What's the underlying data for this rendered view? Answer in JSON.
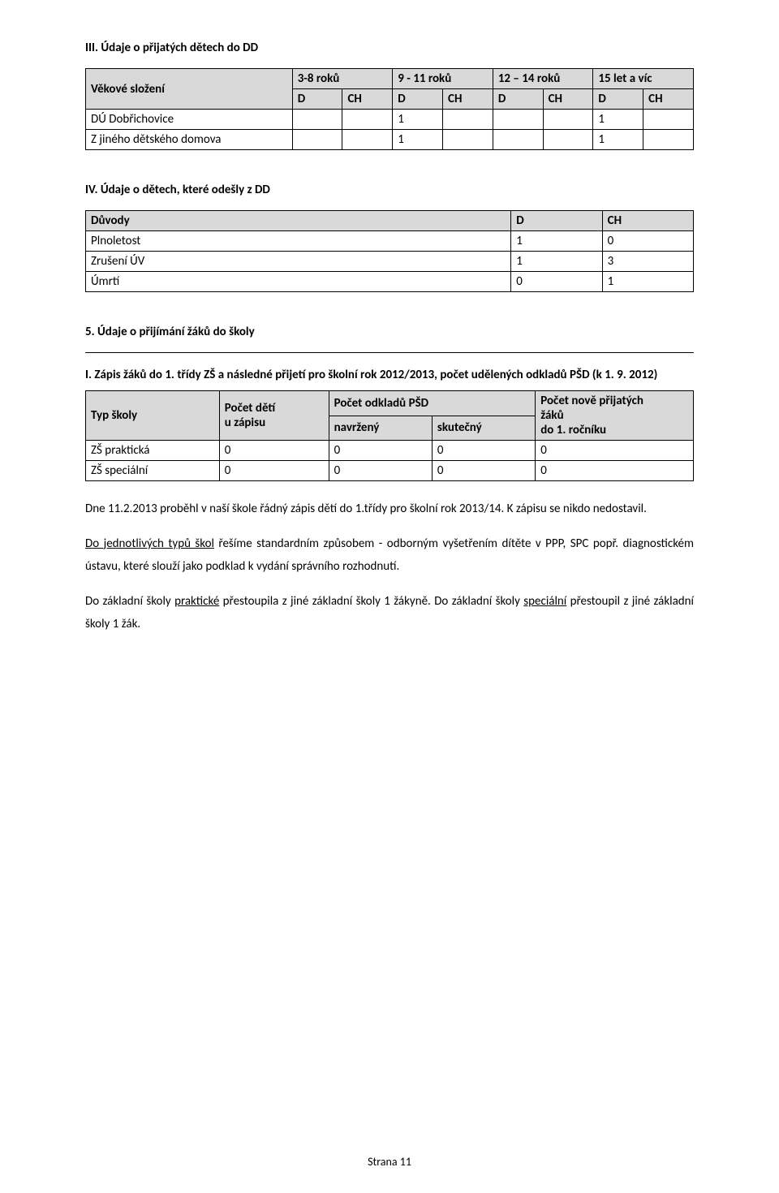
{
  "s1": {
    "title": "III. Údaje o přijatých dětech do DD",
    "headers": {
      "c1": "Věkové složení",
      "g1": "3-8 roků",
      "g2": "9 - 11 roků",
      "g3": "12 – 14 roků",
      "g4": "15 let a víc",
      "D": "D",
      "CH": "CH"
    },
    "rows": [
      {
        "label": "DÚ Dobřichovice",
        "v": [
          "",
          "",
          "1",
          "",
          "",
          "",
          "1",
          ""
        ]
      },
      {
        "label": "Z jiného dětského domova",
        "v": [
          "",
          "",
          "1",
          "",
          "",
          "",
          "1",
          ""
        ]
      }
    ]
  },
  "s2": {
    "title": "IV. Údaje o dětech, které odešly z DD",
    "headers": {
      "c1": "Důvody",
      "c2": "D",
      "c3": "CH"
    },
    "rows": [
      {
        "label": "Plnoletost",
        "d": "1",
        "ch": "0"
      },
      {
        "label": "Zrušení ÚV",
        "d": "1",
        "ch": "3"
      },
      {
        "label": "Úmrtí",
        "d": "0",
        "ch": "1"
      }
    ]
  },
  "s3": {
    "title": "5. Údaje o přijímání žáků do školy",
    "subtitle": "I. Zápis žáků do 1. třídy ZŠ a následné přijetí pro školní rok 2012/2013, počet udělených odkladů PŠD  (k 1. 9. 2012)",
    "headers": {
      "typ": "Typ školy",
      "pocet_deti_ln1": "Počet dětí",
      "pocet_deti_ln2": "u zápisu",
      "odklad": "Počet odkladů PŠD",
      "navrzeny": "navržený",
      "skutecny": "skutečný",
      "nove_ln1": "Počet nově přijatých",
      "nove_ln2": "žáků",
      "nove_ln3": "do 1. ročníku"
    },
    "rows": [
      {
        "label": "ZŠ praktická",
        "v": [
          "0",
          "0",
          "0",
          "0"
        ]
      },
      {
        "label": "ZŠ speciální",
        "v": [
          "0",
          "0",
          "0",
          "0"
        ]
      }
    ]
  },
  "body": {
    "p1a": "Dne 11.2.2013 proběhl v naší škole řádný zápis dětí do 1.třídy pro školní rok 2013/14. K zápisu se",
    "p1b": "nikdo nedostavil.",
    "p2a_pre": "Do jednotlivých typů škol",
    "p2a_post": " řešíme standardním způsobem - odborným vyšetřením dítěte v PPP, SPC",
    "p2b": "popř. diagnostickém ústavu, které slouží jako podklad k vydání správního rozhodnutí.",
    "p3a_pre": "Do základní školy ",
    "p3a_ul": "praktické",
    "p3a_post": " přestoupila z jiné základní školy 1 žákyně. Do základní školy ",
    "p3a_ul2": "speciální",
    "p3b": "přestoupil z jiné základní školy 1 žák."
  },
  "footer": "Strana 11"
}
